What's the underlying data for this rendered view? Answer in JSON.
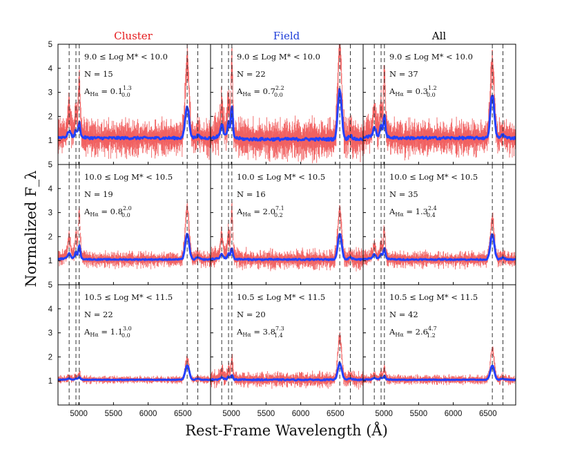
{
  "chart_data": {
    "type": "line",
    "xlabel": "Rest-Frame Wavelength (Å)",
    "ylabel": "Normalized F_λ",
    "xlim": [
      4700,
      6900
    ],
    "ylim": [
      0,
      5
    ],
    "x_ticks": [
      {
        "value": 5000,
        "label": "5000"
      },
      {
        "value": 5500,
        "label": "5500"
      },
      {
        "value": 6000,
        "label": "6000"
      },
      {
        "value": 6500,
        "label": "6500"
      }
    ],
    "y_ticks": [
      {
        "value": 1,
        "label": "1"
      },
      {
        "value": 2,
        "label": "2"
      },
      {
        "value": 3,
        "label": "3"
      },
      {
        "value": 4,
        "label": "4"
      },
      {
        "value": 5,
        "label": "5"
      }
    ],
    "line_markers_angstrom": [
      4861,
      4959,
      5007,
      6563,
      6716
    ],
    "columns": [
      {
        "title": "Cluster",
        "color": "#e41a1c"
      },
      {
        "title": "Field",
        "color": "#1f3fd9"
      },
      {
        "title": "All",
        "color": "#000000"
      }
    ],
    "rows": [
      {
        "mass_label": "9.0 ≤ Log M* < 10.0"
      },
      {
        "mass_label": "10.0 ≤ Log M* < 10.5"
      },
      {
        "mass_label": "10.5 ≤ Log M* < 11.5"
      }
    ],
    "series_colors": {
      "individual": "#f05050",
      "stack": "#2340ff"
    },
    "panels": [
      {
        "row": 0,
        "col": 0,
        "N": "N = 15",
        "A_base": "0.1",
        "A_sup": "1.3",
        "A_sub": "0.0",
        "continuum": 1.1,
        "halpha_stack": 2.4,
        "halpha_peak": 4.2,
        "oiii_stack": 1.7,
        "oiii_peak": 3.3,
        "scatter": 0.45
      },
      {
        "row": 0,
        "col": 1,
        "N": "N = 22",
        "A_base": "0.7",
        "A_sup": "2.2",
        "A_sub": "0.0",
        "continuum": 1.05,
        "halpha_stack": 3.1,
        "halpha_peak": 4.9,
        "oiii_stack": 2.3,
        "oiii_peak": 3.9,
        "scatter": 0.5
      },
      {
        "row": 0,
        "col": 2,
        "N": "N = 37",
        "A_base": "0.3",
        "A_sup": "1.2",
        "A_sub": "0.0",
        "continuum": 1.1,
        "halpha_stack": 2.9,
        "halpha_peak": 4.2,
        "oiii_stack": 2.0,
        "oiii_peak": 3.5,
        "scatter": 0.45
      },
      {
        "row": 1,
        "col": 0,
        "N": "N = 19",
        "A_base": "0.8",
        "A_sup": "2.0",
        "A_sub": "0.0",
        "continuum": 1.05,
        "halpha_stack": 2.1,
        "halpha_peak": 3.2,
        "oiii_stack": 1.6,
        "oiii_peak": 2.9,
        "scatter": 0.2
      },
      {
        "row": 1,
        "col": 1,
        "N": "N = 16",
        "A_base": "2.0",
        "A_sup": "7.1",
        "A_sub": "0.2",
        "continuum": 1.05,
        "halpha_stack": 2.1,
        "halpha_peak": 3.1,
        "oiii_stack": 1.5,
        "oiii_peak": 3.0,
        "scatter": 0.25
      },
      {
        "row": 1,
        "col": 2,
        "N": "N = 35",
        "A_base": "1.3",
        "A_sup": "2.4",
        "A_sub": "0.4",
        "continuum": 1.05,
        "halpha_stack": 2.1,
        "halpha_peak": 2.7,
        "oiii_stack": 1.5,
        "oiii_peak": 2.2,
        "scatter": 0.2
      },
      {
        "row": 2,
        "col": 0,
        "N": "N = 22",
        "A_base": "1.1",
        "A_sup": "3.0",
        "A_sub": "0.0",
        "continuum": 1.05,
        "halpha_stack": 1.65,
        "halpha_peak": 1.9,
        "oiii_stack": 1.15,
        "oiii_peak": 1.3,
        "scatter": 0.1
      },
      {
        "row": 2,
        "col": 1,
        "N": "N = 20",
        "A_base": "3.8",
        "A_sup": "7.3",
        "A_sub": "1.4",
        "continuum": 1.05,
        "halpha_stack": 1.75,
        "halpha_peak": 2.8,
        "oiii_stack": 1.25,
        "oiii_peak": 1.8,
        "scatter": 0.2
      },
      {
        "row": 2,
        "col": 2,
        "N": "N = 42",
        "A_base": "2.6",
        "A_sup": "4.7",
        "A_sub": "1.2",
        "continuum": 1.05,
        "halpha_stack": 1.65,
        "halpha_peak": 2.3,
        "oiii_stack": 1.2,
        "oiii_peak": 1.5,
        "scatter": 0.12
      }
    ]
  }
}
